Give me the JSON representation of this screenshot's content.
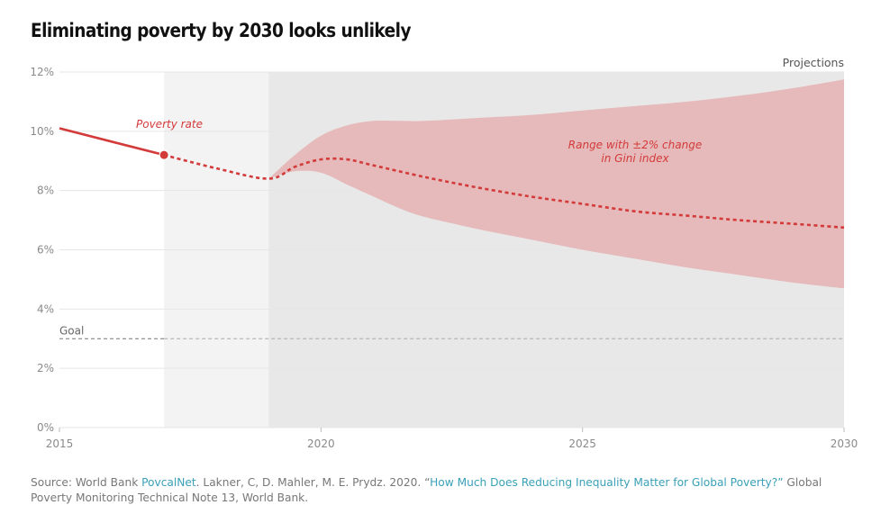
{
  "title": "Eliminating poverty by 2030 looks unlikely",
  "source": {
    "prefix": "Source: World Bank ",
    "link1": "PovcalNet",
    "mid": ". Lakner, C, D. Mahler, M. E. Prydz. 2020. “",
    "link2": "How Much Does Reducing Inequality Matter for Global Poverty?”",
    "suffix": " Global Poverty Monitoring Technical Note 13, World Bank."
  },
  "chart_data": {
    "type": "line",
    "title": "Eliminating poverty by 2030 looks unlikely",
    "xlim": [
      2015,
      2030
    ],
    "ylim": [
      0,
      12
    ],
    "x_ticks": [
      2015,
      2020,
      2025,
      2030
    ],
    "y_ticks": [
      0,
      2,
      4,
      6,
      8,
      10,
      12
    ],
    "y_tick_labels": [
      "0%",
      "2%",
      "4%",
      "6%",
      "8%",
      "10%",
      "12%"
    ],
    "grid": true,
    "series": [
      {
        "name": "Poverty rate",
        "style": "solid",
        "color": "#d33a3a",
        "x": [
          2015,
          2017
        ],
        "y": [
          10.1,
          9.2
        ]
      },
      {
        "name": "",
        "style": "dashed",
        "color": "#d33a3a",
        "x": [
          2017,
          2018,
          2019,
          2019.5,
          2020,
          2020.5,
          2021,
          2022,
          2023,
          2024,
          2025,
          2026,
          2027,
          2028,
          2029,
          2030
        ],
        "y": [
          9.2,
          8.75,
          8.4,
          8.8,
          9.05,
          9.05,
          8.85,
          8.45,
          8.1,
          7.8,
          7.55,
          7.3,
          7.15,
          7.0,
          6.88,
          6.75
        ]
      }
    ],
    "range_band": {
      "label_line1": "Range with ±2% change",
      "label_line2": "in Gini index",
      "color": "#e5b5b5",
      "x": [
        2019,
        2019.5,
        2020,
        2020.5,
        2021,
        2021.5,
        2022,
        2023,
        2024,
        2025,
        2026,
        2027,
        2028,
        2029,
        2030
      ],
      "upper": [
        8.4,
        9.2,
        9.85,
        10.2,
        10.35,
        10.35,
        10.35,
        10.45,
        10.55,
        10.7,
        10.85,
        11.0,
        11.2,
        11.45,
        11.75
      ],
      "lower": [
        8.4,
        8.65,
        8.6,
        8.2,
        7.8,
        7.4,
        7.1,
        6.7,
        6.35,
        6.0,
        5.7,
        5.4,
        5.15,
        4.9,
        4.7
      ]
    },
    "highlight_point": {
      "x": 2017,
      "y": 9.2
    },
    "goal": {
      "label": "Goal",
      "y": 3
    },
    "shaded_regions": [
      {
        "x_start": 2017,
        "x_end": 2019,
        "color": "#f3f3f3"
      },
      {
        "x_start": 2019,
        "x_end": 2030,
        "color": "#e8e8e8",
        "label": "Projections"
      }
    ],
    "colors": {
      "line": "#d33a3a",
      "band": "#e5b5b5",
      "goal_line": "#999999"
    }
  }
}
